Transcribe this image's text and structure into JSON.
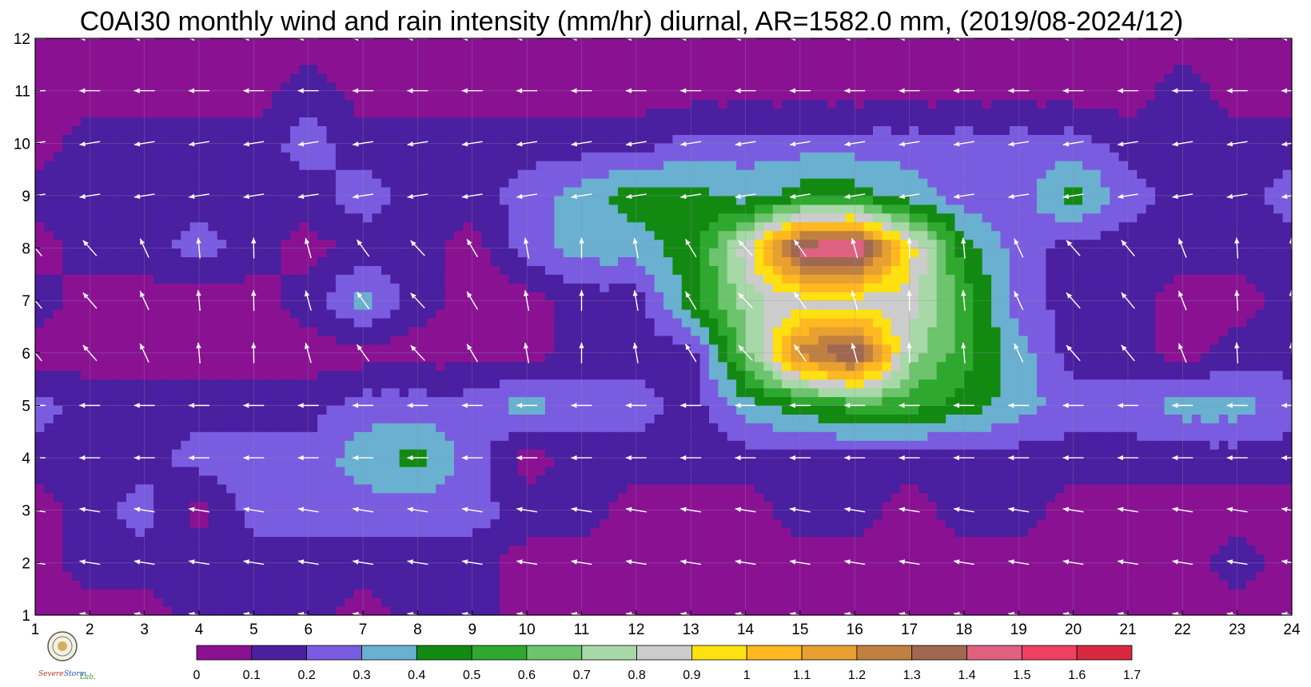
{
  "chart_data": {
    "type": "heatmap",
    "title": "C0AI30 monthly wind and rain intensity (mm/hr) diurnal, AR=1582.0 mm, (2019/08-2024/12)",
    "xlabel": "",
    "ylabel": "",
    "xlim": [
      1,
      24
    ],
    "ylim": [
      1,
      12
    ],
    "x_ticks": [
      "1",
      "2",
      "3",
      "4",
      "5",
      "6",
      "7",
      "8",
      "9",
      "10",
      "11",
      "12",
      "13",
      "14",
      "15",
      "16",
      "17",
      "18",
      "19",
      "20",
      "21",
      "22",
      "23",
      "24"
    ],
    "y_ticks": [
      "1",
      "2",
      "3",
      "4",
      "5",
      "6",
      "7",
      "8",
      "9",
      "10",
      "11",
      "12"
    ],
    "grid": true,
    "colorbar": {
      "levels": [
        0,
        0.1,
        0.2,
        0.3,
        0.4,
        0.5,
        0.6,
        0.7,
        0.8,
        0.9,
        1,
        1.1,
        1.2,
        1.3,
        1.4,
        1.5,
        1.6,
        1.7
      ],
      "labels": [
        "0",
        "0.1",
        "0.2",
        "0.3",
        "0.4",
        "0.5",
        "0.6",
        "0.7",
        "0.8",
        "0.9",
        "1",
        "1.1",
        "1.2",
        "1.3",
        "1.4",
        "1.5",
        "1.6",
        "1.7"
      ],
      "colors": [
        "#8a1292",
        "#4a1fa0",
        "#7a5ce0",
        "#6ab0d0",
        "#128a12",
        "#2ea82e",
        "#6cc46c",
        "#a8d8a8",
        "#cccccc",
        "#ffe010",
        "#ffb820",
        "#e8a030",
        "#c08040",
        "#a06850",
        "#e06080",
        "#f04060",
        "#d82840"
      ]
    },
    "contour_line_color": "#e8a000",
    "rain_grid_rows_month_1_to_12": [
      [
        0.05,
        0.05,
        0.05,
        0.15,
        0.15,
        0.15,
        0.05,
        0.15,
        0.15,
        0.05,
        0.05,
        0.05,
        0.05,
        0.05,
        0.05,
        0.05,
        0.05,
        0.05,
        0.05,
        0.05,
        0.05,
        0.05,
        0.05,
        0.05
      ],
      [
        0.05,
        0.15,
        0.15,
        0.15,
        0.15,
        0.15,
        0.15,
        0.15,
        0.15,
        0.05,
        0.05,
        0.05,
        0.05,
        0.05,
        0.05,
        0.05,
        0.05,
        0.05,
        0.05,
        0.05,
        0.05,
        0.05,
        0.15,
        0.05
      ],
      [
        0.05,
        0.15,
        0.25,
        0.05,
        0.25,
        0.25,
        0.25,
        0.25,
        0.25,
        0.15,
        0.15,
        0.05,
        0.05,
        0.05,
        0.15,
        0.15,
        0.05,
        0.15,
        0.15,
        0.05,
        0.05,
        0.05,
        0.05,
        0.05
      ],
      [
        0.15,
        0.15,
        0.15,
        0.25,
        0.25,
        0.25,
        0.35,
        0.45,
        0.25,
        0.05,
        0.15,
        0.15,
        0.15,
        0.15,
        0.15,
        0.15,
        0.15,
        0.15,
        0.15,
        0.15,
        0.15,
        0.15,
        0.15,
        0.15
      ],
      [
        0.25,
        0.15,
        0.15,
        0.15,
        0.15,
        0.15,
        0.25,
        0.25,
        0.25,
        0.35,
        0.25,
        0.25,
        0.15,
        0.35,
        0.45,
        0.55,
        0.55,
        0.45,
        0.35,
        0.25,
        0.25,
        0.35,
        0.35,
        0.25
      ],
      [
        0.05,
        0.05,
        0.05,
        0.05,
        0.05,
        0.05,
        0.05,
        0.05,
        0.05,
        0.05,
        0.15,
        0.15,
        0.15,
        0.65,
        1.25,
        1.45,
        0.75,
        0.55,
        0.35,
        0.15,
        0.15,
        0.05,
        0.15,
        0.15
      ],
      [
        0.15,
        0.05,
        0.05,
        0.05,
        0.05,
        0.15,
        0.35,
        0.15,
        0.05,
        0.05,
        0.15,
        0.15,
        0.45,
        0.75,
        0.85,
        0.85,
        0.85,
        0.55,
        0.25,
        0.15,
        0.15,
        0.05,
        0.05,
        0.15
      ],
      [
        0.05,
        0.15,
        0.15,
        0.25,
        0.15,
        0.05,
        0.15,
        0.15,
        0.05,
        0.25,
        0.35,
        0.35,
        0.45,
        0.85,
        1.45,
        1.55,
        0.95,
        0.45,
        0.25,
        0.15,
        0.15,
        0.15,
        0.15,
        0.15
      ],
      [
        0.15,
        0.15,
        0.15,
        0.15,
        0.15,
        0.15,
        0.25,
        0.15,
        0.15,
        0.25,
        0.35,
        0.45,
        0.45,
        0.35,
        0.45,
        0.45,
        0.35,
        0.25,
        0.25,
        0.45,
        0.25,
        0.15,
        0.15,
        0.25
      ],
      [
        0.05,
        0.15,
        0.15,
        0.15,
        0.15,
        0.25,
        0.15,
        0.15,
        0.15,
        0.15,
        0.15,
        0.15,
        0.25,
        0.25,
        0.25,
        0.25,
        0.25,
        0.25,
        0.25,
        0.25,
        0.15,
        0.15,
        0.15,
        0.15
      ],
      [
        0.05,
        0.05,
        0.05,
        0.05,
        0.05,
        0.15,
        0.05,
        0.05,
        0.05,
        0.05,
        0.05,
        0.05,
        0.05,
        0.05,
        0.05,
        0.05,
        0.05,
        0.05,
        0.05,
        0.05,
        0.05,
        0.15,
        0.05,
        0.05
      ],
      [
        0.05,
        0.05,
        0.05,
        0.05,
        0.05,
        0.05,
        0.05,
        0.05,
        0.05,
        0.05,
        0.05,
        0.05,
        0.05,
        0.05,
        0.05,
        0.05,
        0.05,
        0.05,
        0.05,
        0.05,
        0.05,
        0.05,
        0.05,
        0.05
      ]
    ],
    "wind_direction": "mostly westward (from east), with northward components in months 6-8"
  },
  "logo": {
    "text_1": "Severe",
    "text_2": "Storm",
    "text_3": "Lab."
  }
}
